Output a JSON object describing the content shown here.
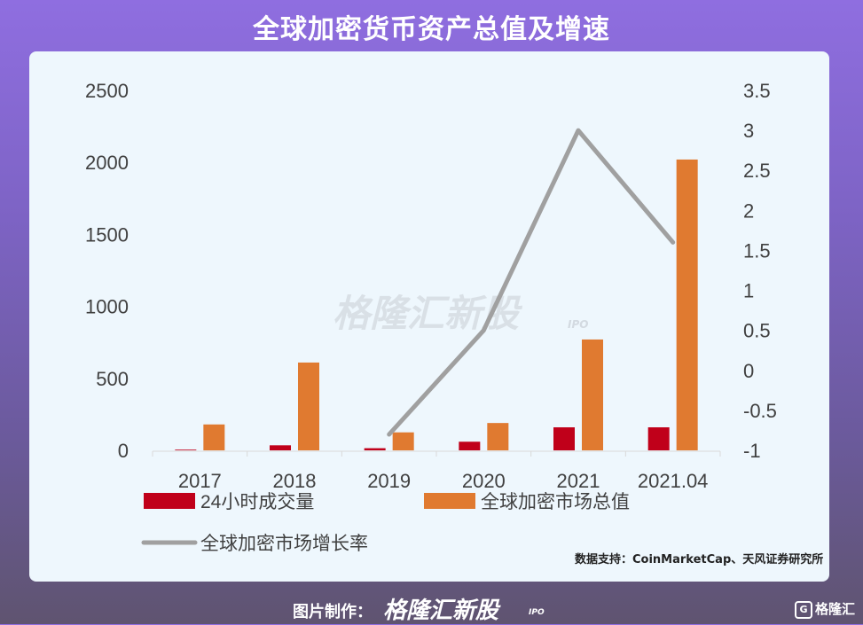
{
  "header": {
    "title": "全球加密货币资产总值及增速"
  },
  "watermark": {
    "brand": "格隆汇新股",
    "suffix": "IPO"
  },
  "source": "数据支持：CoinMarketCap、天风证券研究所",
  "footer": {
    "label": "图片制作：",
    "brand": "格隆汇新股",
    "suffix": "IPO",
    "corner": "格隆汇"
  },
  "colors": {
    "volume": "#c0001a",
    "market_cap": "#e07a30",
    "growth": "#a0a0a0"
  },
  "chart_data": {
    "type": "bar",
    "categories": [
      "2017",
      "2018",
      "2019",
      "2020",
      "2021",
      "2021.04"
    ],
    "series": [
      {
        "name": "24小时成交量",
        "type": "bar",
        "axis": "left",
        "values": [
          5,
          35,
          15,
          60,
          160,
          160
        ]
      },
      {
        "name": "全球加密市场总值",
        "type": "bar",
        "axis": "left",
        "values": [
          180,
          610,
          125,
          190,
          770,
          2020
        ]
      },
      {
        "name": "全球加密市场增长率",
        "type": "line",
        "axis": "right",
        "values": [
          null,
          null,
          -0.8,
          0.5,
          3.0,
          1.6
        ]
      }
    ],
    "left_axis": {
      "ylim": [
        0,
        2500
      ],
      "ticks": [
        "0",
        "500",
        "1000",
        "1500",
        "2000",
        "2500"
      ]
    },
    "right_axis": {
      "ylim": [
        -1,
        3.5
      ],
      "ticks": [
        "-1",
        "-0.5",
        "0",
        "0.5",
        "1",
        "1.5",
        "2",
        "2.5",
        "3",
        "3.5"
      ]
    },
    "legend": {
      "position": "bottom"
    },
    "grid": false
  }
}
